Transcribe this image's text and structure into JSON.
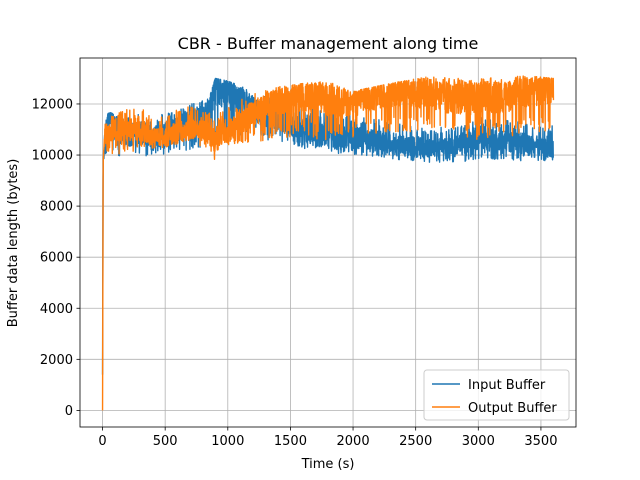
{
  "chart_data": {
    "type": "line",
    "title": "CBR - Buffer management along time",
    "xlabel": "Time (s)",
    "ylabel": "Buffer data length (bytes)",
    "xlim": [
      -180,
      3780
    ],
    "ylim": [
      -650,
      13800
    ],
    "x_ticks": [
      0,
      500,
      1000,
      1500,
      2000,
      2500,
      3000,
      3500
    ],
    "y_ticks": [
      0,
      2000,
      4000,
      6000,
      8000,
      10000,
      12000
    ],
    "grid": true,
    "legend_position": "lower right",
    "series": [
      {
        "name": "Input Buffer",
        "color": "#1f77b4",
        "trend": [
          [
            0,
            1400
          ],
          [
            5,
            9800
          ],
          [
            20,
            10600
          ],
          [
            50,
            11600
          ],
          [
            100,
            11000
          ],
          [
            200,
            10700
          ],
          [
            300,
            10900
          ],
          [
            400,
            10700
          ],
          [
            500,
            10800
          ],
          [
            600,
            11000
          ],
          [
            700,
            11300
          ],
          [
            850,
            11800
          ],
          [
            900,
            12700
          ],
          [
            1000,
            12400
          ],
          [
            1200,
            11800
          ],
          [
            1400,
            11300
          ],
          [
            1600,
            11000
          ],
          [
            1800,
            10800
          ],
          [
            2000,
            10700
          ],
          [
            2200,
            10600
          ],
          [
            2400,
            10400
          ],
          [
            2600,
            10300
          ],
          [
            2800,
            10300
          ],
          [
            3000,
            10700
          ],
          [
            3200,
            10500
          ],
          [
            3400,
            10400
          ],
          [
            3600,
            10300
          ]
        ],
        "low": [
          [
            0,
            1400
          ],
          [
            5,
            9800
          ],
          [
            20,
            9700
          ],
          [
            100,
            9800
          ],
          [
            200,
            9900
          ],
          [
            300,
            9900
          ],
          [
            400,
            10000
          ],
          [
            500,
            10000
          ],
          [
            600,
            10100
          ],
          [
            700,
            10200
          ],
          [
            800,
            10300
          ],
          [
            900,
            10300
          ],
          [
            1000,
            10700
          ],
          [
            1200,
            10700
          ],
          [
            1400,
            10500
          ],
          [
            1600,
            10200
          ],
          [
            1800,
            10100
          ],
          [
            2000,
            10000
          ],
          [
            2200,
            9900
          ],
          [
            2400,
            9800
          ],
          [
            2600,
            9700
          ],
          [
            2800,
            9700
          ],
          [
            3000,
            9800
          ],
          [
            3200,
            9800
          ],
          [
            3400,
            9700
          ],
          [
            3600,
            9700
          ]
        ],
        "high": [
          [
            0,
            1400
          ],
          [
            5,
            9800
          ],
          [
            20,
            11600
          ],
          [
            100,
            11700
          ],
          [
            200,
            11500
          ],
          [
            300,
            11600
          ],
          [
            400,
            11500
          ],
          [
            500,
            11700
          ],
          [
            600,
            11800
          ],
          [
            700,
            12000
          ],
          [
            850,
            12200
          ],
          [
            900,
            13000
          ],
          [
            1000,
            12900
          ],
          [
            1200,
            12500
          ],
          [
            1400,
            12100
          ],
          [
            1600,
            11900
          ],
          [
            1800,
            11800
          ],
          [
            2000,
            11600
          ],
          [
            2200,
            11400
          ],
          [
            2400,
            11200
          ],
          [
            2600,
            11100
          ],
          [
            2800,
            11100
          ],
          [
            3000,
            11600
          ],
          [
            3200,
            11400
          ],
          [
            3400,
            11300
          ],
          [
            3600,
            11200
          ]
        ]
      },
      {
        "name": "Output Buffer",
        "color": "#ff7f0e",
        "trend": [
          [
            0,
            0
          ],
          [
            5,
            9800
          ],
          [
            20,
            10800
          ],
          [
            100,
            11000
          ],
          [
            200,
            11000
          ],
          [
            300,
            11000
          ],
          [
            400,
            10700
          ],
          [
            500,
            10700
          ],
          [
            600,
            10900
          ],
          [
            700,
            11000
          ],
          [
            800,
            11000
          ],
          [
            900,
            10600
          ],
          [
            1000,
            11000
          ],
          [
            1200,
            11600
          ],
          [
            1400,
            12100
          ],
          [
            1600,
            12300
          ],
          [
            1800,
            12200
          ],
          [
            2000,
            12000
          ],
          [
            2200,
            12300
          ],
          [
            2400,
            12500
          ],
          [
            2600,
            12400
          ],
          [
            2800,
            12200
          ],
          [
            3000,
            12200
          ],
          [
            3200,
            12300
          ],
          [
            3400,
            12500
          ],
          [
            3600,
            12600
          ]
        ],
        "low": [
          [
            0,
            0
          ],
          [
            5,
            9800
          ],
          [
            20,
            9900
          ],
          [
            100,
            10000
          ],
          [
            200,
            10100
          ],
          [
            300,
            10200
          ],
          [
            400,
            10200
          ],
          [
            500,
            10300
          ],
          [
            600,
            10400
          ],
          [
            700,
            10500
          ],
          [
            800,
            10300
          ],
          [
            900,
            9800
          ],
          [
            1000,
            10200
          ],
          [
            1200,
            10500
          ],
          [
            1400,
            10600
          ],
          [
            1600,
            10700
          ],
          [
            1800,
            10500
          ],
          [
            2000,
            10700
          ],
          [
            2200,
            10800
          ],
          [
            2400,
            10900
          ],
          [
            2600,
            10900
          ],
          [
            2800,
            10800
          ],
          [
            3000,
            10600
          ],
          [
            3200,
            10700
          ],
          [
            3400,
            10800
          ],
          [
            3600,
            11000
          ]
        ],
        "high": [
          [
            0,
            0
          ],
          [
            5,
            9800
          ],
          [
            20,
            11400
          ],
          [
            100,
            11600
          ],
          [
            200,
            11800
          ],
          [
            300,
            11800
          ],
          [
            400,
            11700
          ],
          [
            500,
            11700
          ],
          [
            600,
            11800
          ],
          [
            700,
            11900
          ],
          [
            800,
            11700
          ],
          [
            900,
            11600
          ],
          [
            1000,
            11900
          ],
          [
            1200,
            12400
          ],
          [
            1400,
            12700
          ],
          [
            1600,
            12800
          ],
          [
            1800,
            12900
          ],
          [
            2000,
            12500
          ],
          [
            2200,
            12700
          ],
          [
            2400,
            12900
          ],
          [
            2600,
            13100
          ],
          [
            2800,
            13000
          ],
          [
            3000,
            13000
          ],
          [
            3200,
            13100
          ],
          [
            3400,
            13100
          ],
          [
            3600,
            13000
          ]
        ]
      }
    ]
  }
}
